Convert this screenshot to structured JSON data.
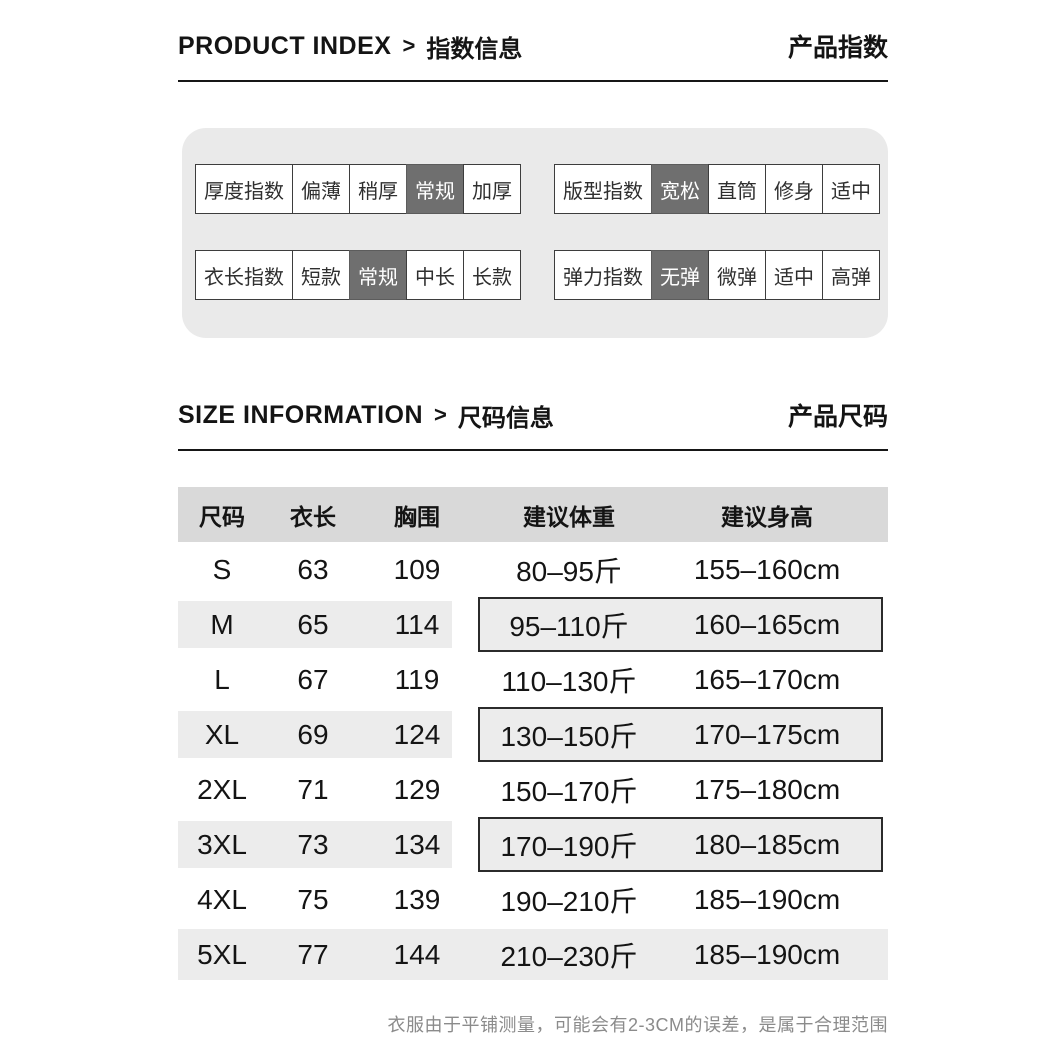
{
  "colors": {
    "panel_bg": "#eaeaea",
    "active_cell_bg": "#6f6f6f",
    "table_header_bg": "#d9d9d9",
    "stripe_bg": "#ececec",
    "footnote_text": "#8b8b8b"
  },
  "product_index": {
    "title_en": "PRODUCT INDEX",
    "separator": ">",
    "title_cn": "指数信息",
    "title_right": "产品指数",
    "tables": [
      {
        "name": "thickness",
        "label": "厚度指数",
        "options": [
          "偏薄",
          "稍厚",
          "常规",
          "加厚"
        ],
        "active": 2
      },
      {
        "name": "fit",
        "label": "版型指数",
        "options": [
          "宽松",
          "直筒",
          "修身",
          "适中"
        ],
        "active": 0
      },
      {
        "name": "length",
        "label": "衣长指数",
        "options": [
          "短款",
          "常规",
          "中长",
          "长款"
        ],
        "active": 1
      },
      {
        "name": "elasticity",
        "label": "弹力指数",
        "options": [
          "无弹",
          "微弹",
          "适中",
          "高弹"
        ],
        "active": 0
      }
    ]
  },
  "size_info": {
    "title_en": "SIZE INFORMATION",
    "separator": ">",
    "title_cn": "尺码信息",
    "title_right": "产品尺码",
    "table": {
      "columns": [
        "尺码",
        "衣长",
        "胸围",
        "建议体重",
        "建议身高"
      ],
      "rows": [
        {
          "size": "S",
          "length": "63",
          "chest": "109",
          "weight": "80–95斤",
          "height": "155–160cm",
          "style": "plain"
        },
        {
          "size": "M",
          "length": "65",
          "chest": "114",
          "weight": "95–110斤",
          "height": "160–165cm",
          "style": "boxed"
        },
        {
          "size": "L",
          "length": "67",
          "chest": "119",
          "weight": "110–130斤",
          "height": "165–170cm",
          "style": "plain"
        },
        {
          "size": "XL",
          "length": "69",
          "chest": "124",
          "weight": "130–150斤",
          "height": "170–175cm",
          "style": "boxed"
        },
        {
          "size": "2XL",
          "length": "71",
          "chest": "129",
          "weight": "150–170斤",
          "height": "175–180cm",
          "style": "plain"
        },
        {
          "size": "3XL",
          "length": "73",
          "chest": "134",
          "weight": "170–190斤",
          "height": "180–185cm",
          "style": "boxed"
        },
        {
          "size": "4XL",
          "length": "75",
          "chest": "139",
          "weight": "190–210斤",
          "height": "185–190cm",
          "style": "plain"
        },
        {
          "size": "5XL",
          "length": "77",
          "chest": "144",
          "weight": "210–230斤",
          "height": "185–190cm",
          "style": "full"
        }
      ]
    }
  },
  "footnote": "衣服由于平铺测量，可能会有2-3CM的误差，是属于合理范围"
}
